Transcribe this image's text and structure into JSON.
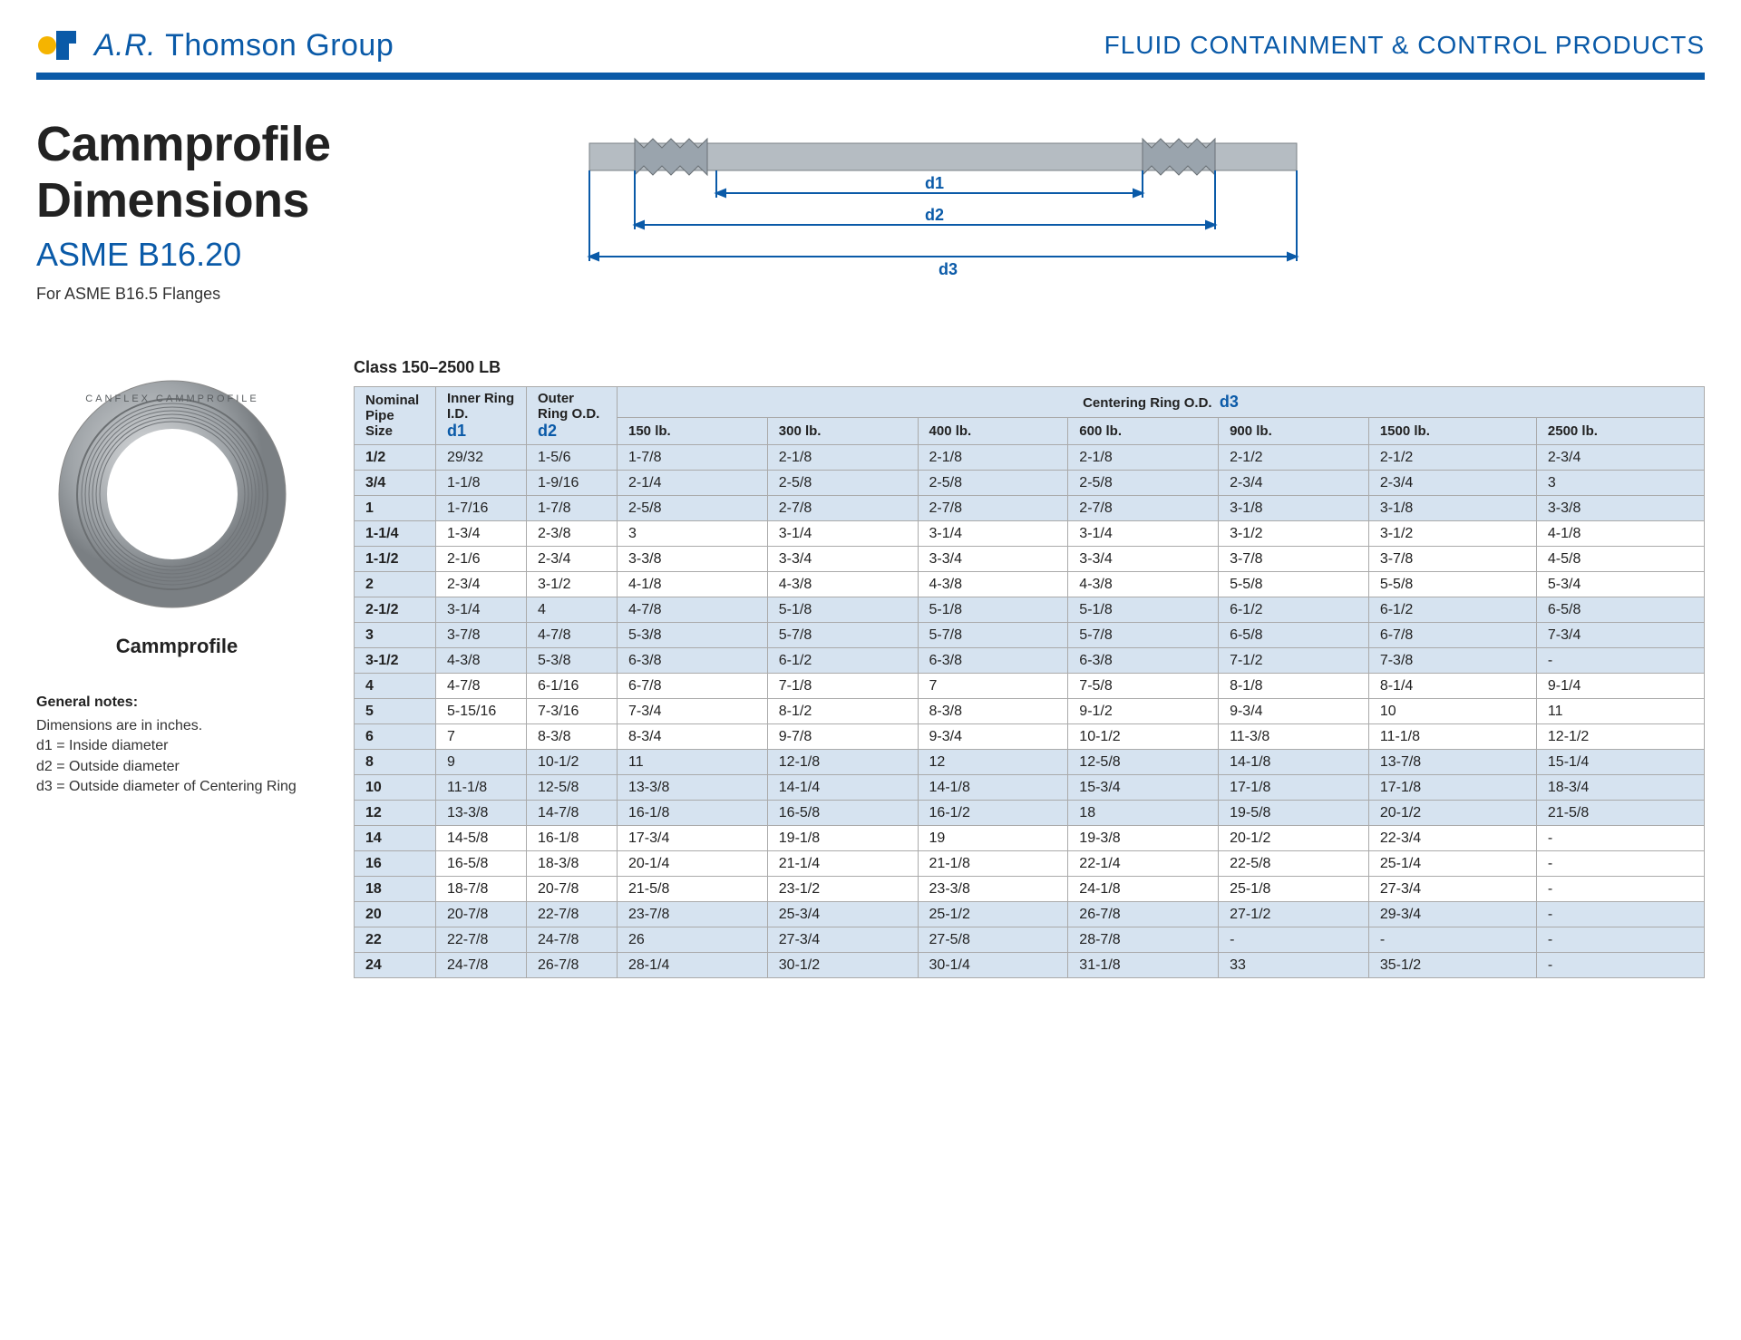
{
  "header": {
    "company": "A.R. Thomson Group",
    "right": "FLUID CONTAINMENT & CONTROL PRODUCTS"
  },
  "title": {
    "main": "Cammprofile Dimensions",
    "sub": "ASME B16.20",
    "desc": "For ASME B16.5 Flanges"
  },
  "diagram": {
    "d1": "d1",
    "d2": "d2",
    "d3": "d3",
    "colors": {
      "line": "#0a5aa8",
      "body": "#9aa4ad",
      "hatch": "#7a8287"
    }
  },
  "product": {
    "label": "Cammprofile"
  },
  "notes": {
    "title": "General notes:",
    "lines": [
      "Dimensions are in inches.",
      "d1 = Inside diameter",
      "d2 = Outside diameter",
      "d3 = Outside diameter of Centering Ring"
    ]
  },
  "table": {
    "title": "Class 150–2500 LB",
    "headers": {
      "nominal": "Nominal Pipe Size",
      "inner": "Inner Ring I.D.",
      "inner_sub": "d1",
      "outer": "Outer Ring O.D.",
      "outer_sub": "d2",
      "centering": "Centering Ring O.D.",
      "centering_sub": "d3",
      "classes": [
        "150 lb.",
        "300 lb.",
        "400 lb.",
        "600 lb.",
        "900 lb.",
        "1500 lb.",
        "2500 lb."
      ]
    },
    "groups": [
      [
        [
          "1/2",
          "29/32",
          "1-5/6",
          "1-7/8",
          "2-1/8",
          "2-1/8",
          "2-1/8",
          "2-1/2",
          "2-1/2",
          "2-3/4"
        ],
        [
          "3/4",
          "1-1/8",
          "1-9/16",
          "2-1/4",
          "2-5/8",
          "2-5/8",
          "2-5/8",
          "2-3/4",
          "2-3/4",
          "3"
        ],
        [
          "1",
          "1-7/16",
          "1-7/8",
          "2-5/8",
          "2-7/8",
          "2-7/8",
          "2-7/8",
          "3-1/8",
          "3-1/8",
          "3-3/8"
        ]
      ],
      [
        [
          "1-1/4",
          "1-3/4",
          "2-3/8",
          "3",
          "3-1/4",
          "3-1/4",
          "3-1/4",
          "3-1/2",
          "3-1/2",
          "4-1/8"
        ],
        [
          "1-1/2",
          "2-1/6",
          "2-3/4",
          "3-3/8",
          "3-3/4",
          "3-3/4",
          "3-3/4",
          "3-7/8",
          "3-7/8",
          "4-5/8"
        ],
        [
          "2",
          "2-3/4",
          "3-1/2",
          "4-1/8",
          "4-3/8",
          "4-3/8",
          "4-3/8",
          "5-5/8",
          "5-5/8",
          "5-3/4"
        ]
      ],
      [
        [
          "2-1/2",
          "3-1/4",
          "4",
          "4-7/8",
          "5-1/8",
          "5-1/8",
          "5-1/8",
          "6-1/2",
          "6-1/2",
          "6-5/8"
        ],
        [
          "3",
          "3-7/8",
          "4-7/8",
          "5-3/8",
          "5-7/8",
          "5-7/8",
          "5-7/8",
          "6-5/8",
          "6-7/8",
          "7-3/4"
        ],
        [
          "3-1/2",
          "4-3/8",
          "5-3/8",
          "6-3/8",
          "6-1/2",
          "6-3/8",
          "6-3/8",
          "7-1/2",
          "7-3/8",
          "-"
        ]
      ],
      [
        [
          "4",
          "4-7/8",
          "6-1/16",
          "6-7/8",
          "7-1/8",
          "7",
          "7-5/8",
          "8-1/8",
          "8-1/4",
          "9-1/4"
        ],
        [
          "5",
          "5-15/16",
          "7-3/16",
          "7-3/4",
          "8-1/2",
          "8-3/8",
          "9-1/2",
          "9-3/4",
          "10",
          "11"
        ],
        [
          "6",
          "7",
          "8-3/8",
          "8-3/4",
          "9-7/8",
          "9-3/4",
          "10-1/2",
          "11-3/8",
          "11-1/8",
          "12-1/2"
        ]
      ],
      [
        [
          "8",
          "9",
          "10-1/2",
          "11",
          "12-1/8",
          "12",
          "12-5/8",
          "14-1/8",
          "13-7/8",
          "15-1/4"
        ],
        [
          "10",
          "11-1/8",
          "12-5/8",
          "13-3/8",
          "14-1/4",
          "14-1/8",
          "15-3/4",
          "17-1/8",
          "17-1/8",
          "18-3/4"
        ],
        [
          "12",
          "13-3/8",
          "14-7/8",
          "16-1/8",
          "16-5/8",
          "16-1/2",
          "18",
          "19-5/8",
          "20-1/2",
          "21-5/8"
        ]
      ],
      [
        [
          "14",
          "14-5/8",
          "16-1/8",
          "17-3/4",
          "19-1/8",
          "19",
          "19-3/8",
          "20-1/2",
          "22-3/4",
          "-"
        ],
        [
          "16",
          "16-5/8",
          "18-3/8",
          "20-1/4",
          "21-1/4",
          "21-1/8",
          "22-1/4",
          "22-5/8",
          "25-1/4",
          "-"
        ],
        [
          "18",
          "18-7/8",
          "20-7/8",
          "21-5/8",
          "23-1/2",
          "23-3/8",
          "24-1/8",
          "25-1/8",
          "27-3/4",
          "-"
        ]
      ],
      [
        [
          "20",
          "20-7/8",
          "22-7/8",
          "23-7/8",
          "25-3/4",
          "25-1/2",
          "26-7/8",
          "27-1/2",
          "29-3/4",
          "-"
        ],
        [
          "22",
          "22-7/8",
          "24-7/8",
          "26",
          "27-3/4",
          "27-5/8",
          "28-7/8",
          "-",
          "-",
          "-"
        ],
        [
          "24",
          "24-7/8",
          "26-7/8",
          "28-1/4",
          "30-1/2",
          "30-1/4",
          "31-1/8",
          "33",
          "35-1/2",
          "-"
        ]
      ]
    ]
  },
  "colors": {
    "brand": "#0a5aa8",
    "header_bg": "#d6e3f0",
    "border": "#aaaaaa"
  }
}
